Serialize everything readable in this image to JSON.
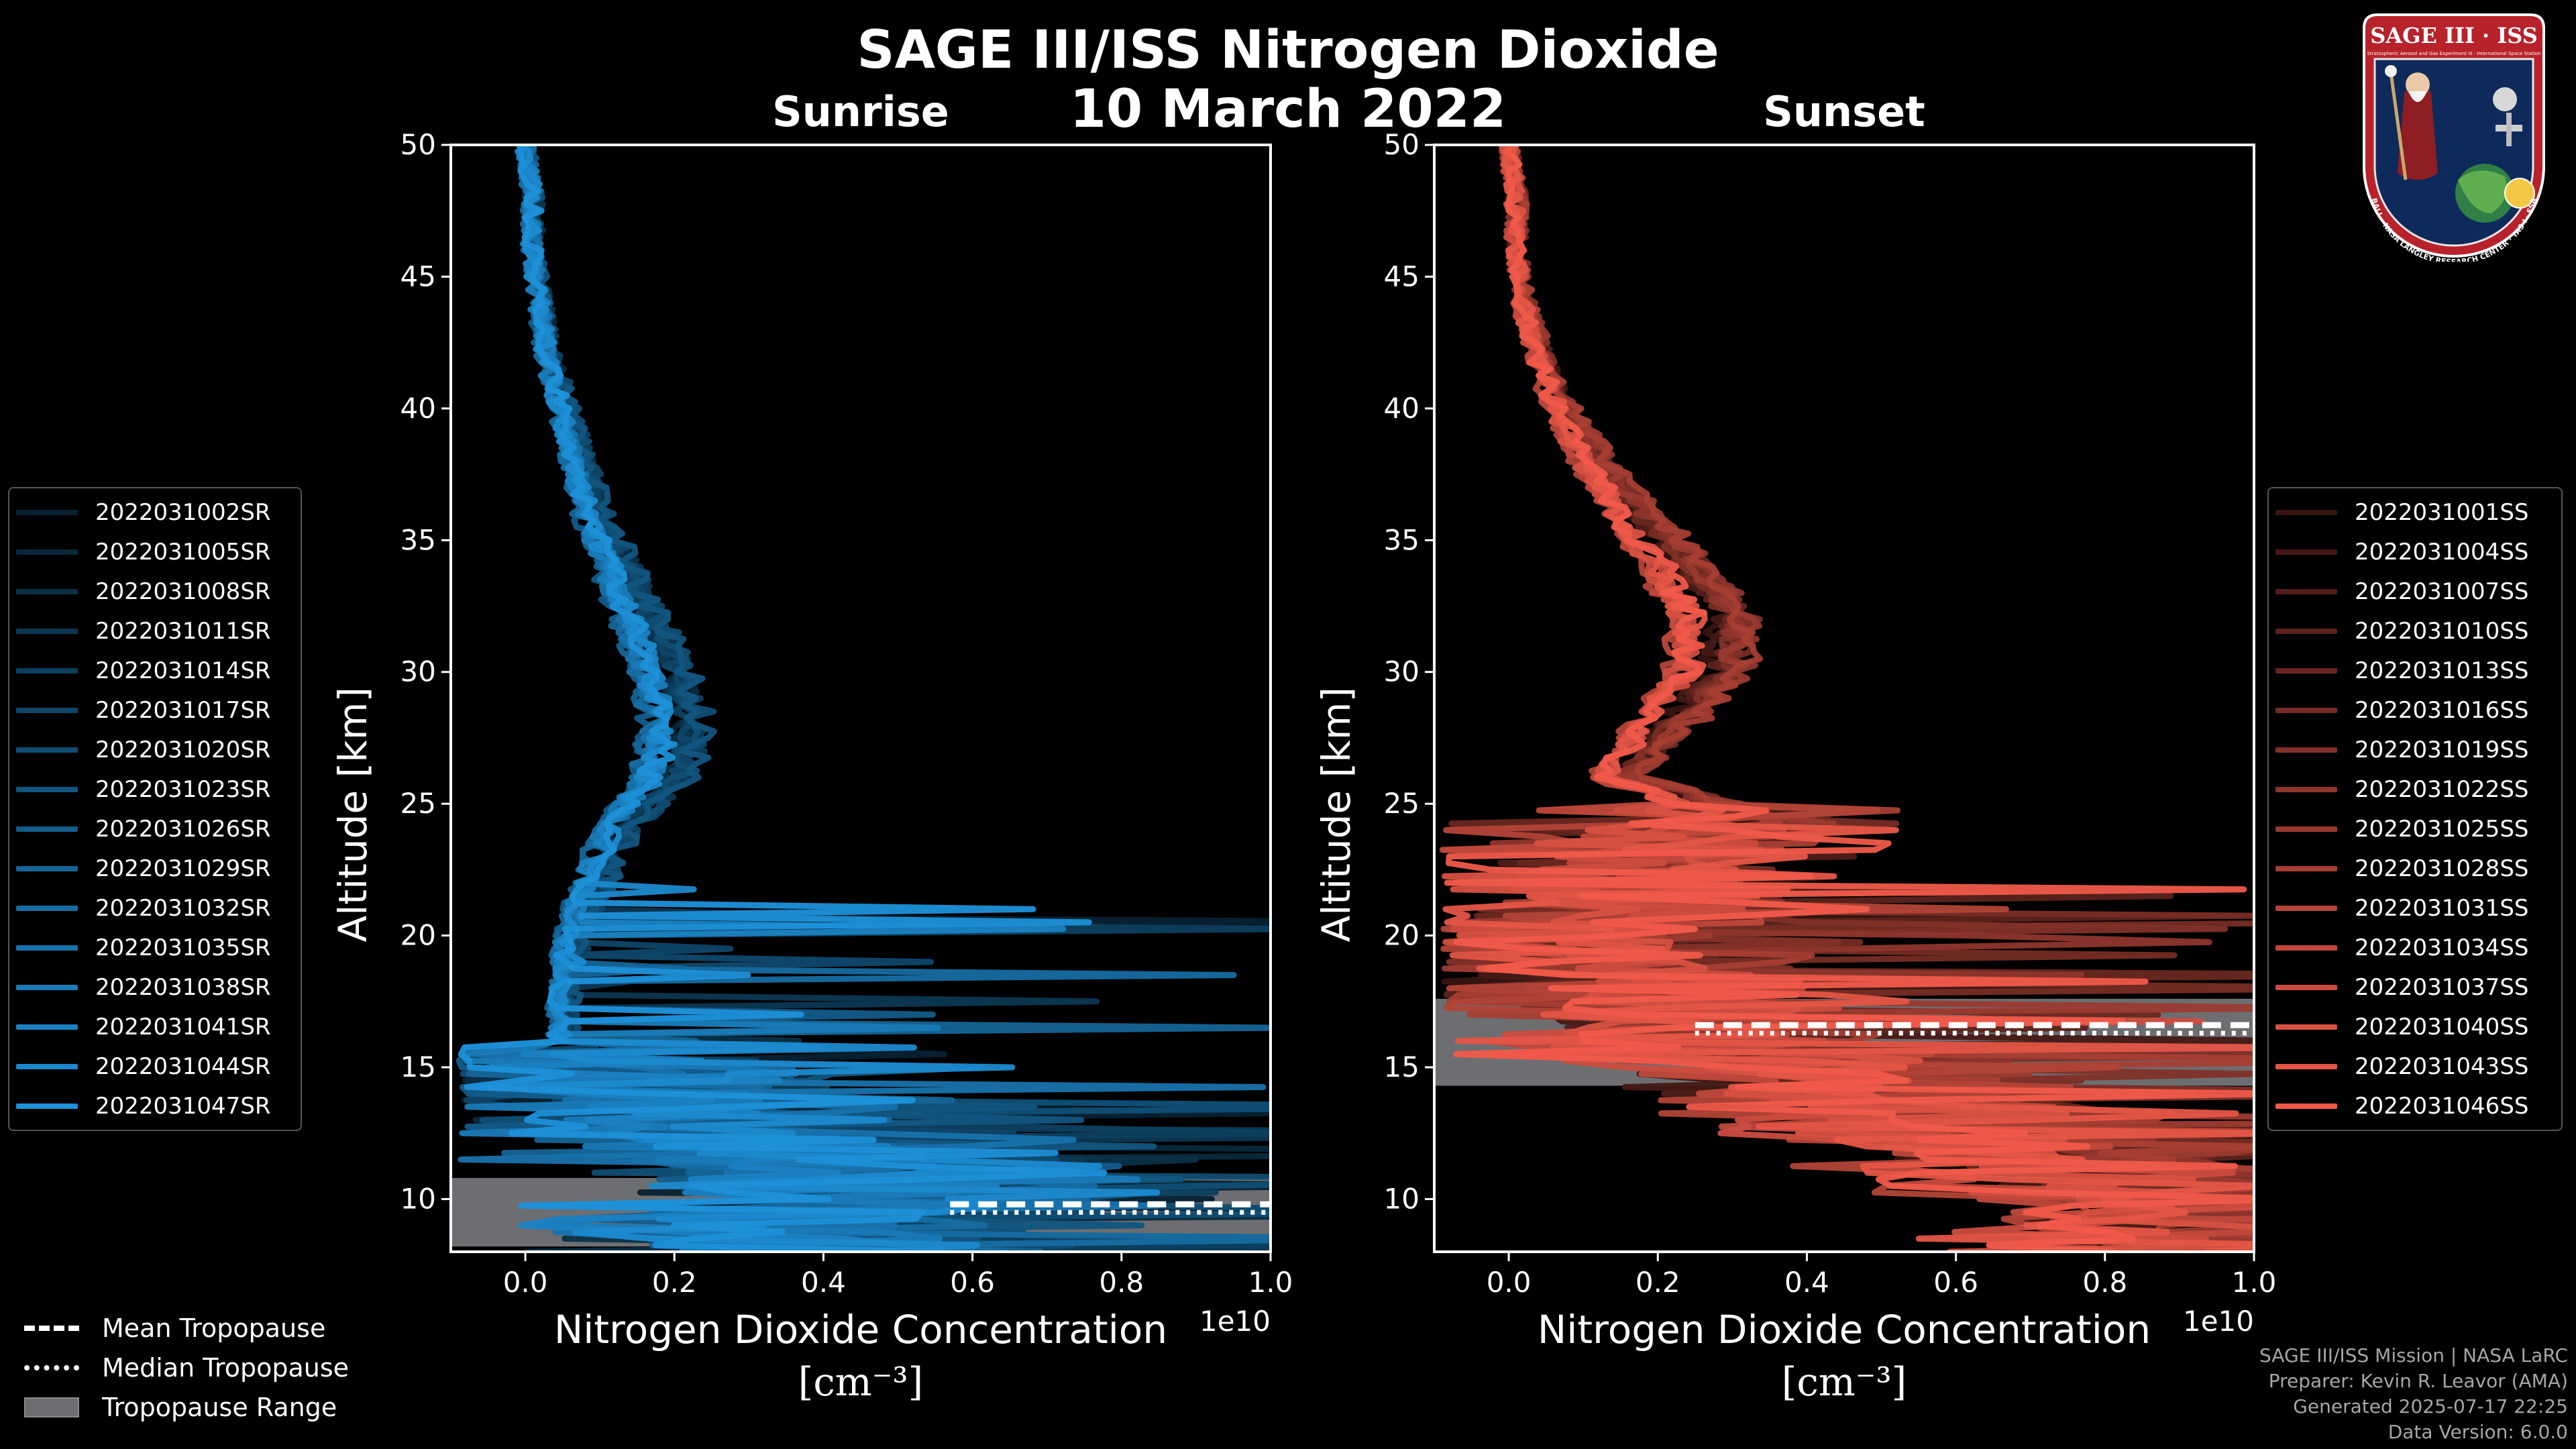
{
  "figure": {
    "title": "SAGE III/ISS Nitrogen Dioxide",
    "date": "10 March 2022",
    "credits": [
      "SAGE III/ISS Mission | NASA LaRC",
      "Preparer: Kevin R. Leavor (AMA)",
      "Generated 2025-07-17 22:25",
      "Data Version: 6.0.0"
    ],
    "logo": {
      "text": "SAGE III · ISS",
      "subtext": "Stratospheric Aerosol and Gas Experiment III · International Space Station",
      "ring_text": "BALL · NASA LANGLEY RESEARCH CENTER · TAS-I · ESA"
    }
  },
  "colors": {
    "sunrise_base": "#1e90d8",
    "sunset_base": "#f05a4a",
    "tropopause_range": "#6d6e71",
    "axes": "#ffffff",
    "background": "#000000"
  },
  "bottom_legend": {
    "mean": "Mean Tropopause",
    "median": "Median Tropopause",
    "range": "Tropopause Range"
  },
  "chart_data": [
    {
      "type": "line",
      "panel": "sunrise",
      "title": "Sunrise",
      "xlabel": "Nitrogen Dioxide Concentration",
      "xunits": "[cm⁻³]",
      "ylabel": "Altitude [km]",
      "x_scale_label": "1e10",
      "xlim": [
        -0.1,
        1.0
      ],
      "ylim": [
        8,
        50
      ],
      "xticks": [
        0.0,
        0.2,
        0.4,
        0.6,
        0.8,
        1.0
      ],
      "yticks": [
        10,
        15,
        20,
        25,
        30,
        35,
        40,
        45,
        50
      ],
      "legend_position": "outside-left",
      "series_names": [
        "2022031002SR",
        "2022031005SR",
        "2022031008SR",
        "2022031011SR",
        "2022031014SR",
        "2022031017SR",
        "2022031020SR",
        "2022031023SR",
        "2022031026SR",
        "2022031029SR",
        "2022031032SR",
        "2022031035SR",
        "2022031038SR",
        "2022031041SR",
        "2022031044SR",
        "2022031047SR"
      ],
      "mean_profile": {
        "altitude_km": [
          50,
          48,
          46,
          44,
          42,
          40,
          38,
          36,
          34,
          32,
          30,
          28,
          26,
          24,
          22,
          20,
          18,
          16,
          14,
          12,
          10,
          9
        ],
        "no2_1e10": [
          0.0,
          0.01,
          0.01,
          0.02,
          0.03,
          0.05,
          0.07,
          0.09,
          0.12,
          0.15,
          0.18,
          0.2,
          0.18,
          0.12,
          0.09,
          0.06,
          0.05,
          0.05,
          0.15,
          0.35,
          0.5,
          0.4
        ]
      },
      "tropopause": {
        "range_km": [
          8.2,
          10.8
        ],
        "mean_km": 9.8,
        "median_km": 9.8,
        "line_x_start": 0.57
      }
    },
    {
      "type": "line",
      "panel": "sunset",
      "title": "Sunset",
      "xlabel": "Nitrogen Dioxide Concentration",
      "xunits": "[cm⁻³]",
      "ylabel": "Altitude [km]",
      "x_scale_label": "1e10",
      "xlim": [
        -0.1,
        1.0
      ],
      "ylim": [
        8,
        50
      ],
      "xticks": [
        0.0,
        0.2,
        0.4,
        0.6,
        0.8,
        1.0
      ],
      "yticks": [
        10,
        15,
        20,
        25,
        30,
        35,
        40,
        45,
        50
      ],
      "legend_position": "outside-right",
      "series_names": [
        "2022031001SS",
        "2022031004SS",
        "2022031007SS",
        "2022031010SS",
        "2022031013SS",
        "2022031016SS",
        "2022031019SS",
        "2022031022SS",
        "2022031025SS",
        "2022031028SS",
        "2022031031SS",
        "2022031034SS",
        "2022031037SS",
        "2022031040SS",
        "2022031043SS",
        "2022031046SS"
      ],
      "mean_profile": {
        "altitude_km": [
          50,
          48,
          46,
          44,
          42,
          40,
          38,
          36,
          34,
          32,
          30,
          28,
          26,
          25,
          24,
          22,
          20,
          18,
          16,
          14,
          12,
          10
        ],
        "no2_1e10": [
          0.0,
          0.01,
          0.01,
          0.02,
          0.04,
          0.07,
          0.11,
          0.16,
          0.22,
          0.27,
          0.26,
          0.2,
          0.14,
          0.25,
          0.2,
          0.15,
          0.12,
          0.1,
          0.25,
          0.45,
          0.65,
          0.85
        ]
      },
      "tropopause": {
        "range_km": [
          14.3,
          17.6
        ],
        "mean_km": 16.6,
        "median_km": 16.6,
        "line_x_start": 0.25
      }
    }
  ]
}
